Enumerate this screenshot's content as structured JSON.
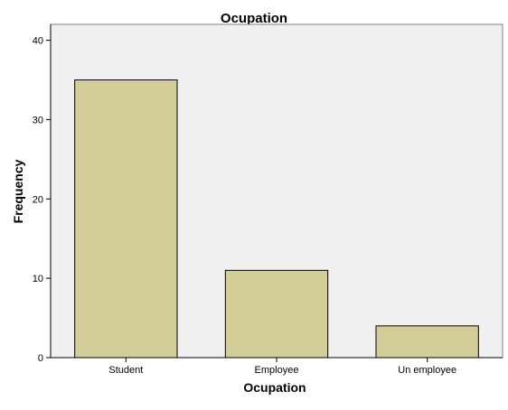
{
  "chart_data": {
    "type": "bar",
    "title": "Ocupation",
    "xlabel": "Ocupation",
    "ylabel": "Frequency",
    "categories": [
      "Student",
      "Employee",
      "Un employee"
    ],
    "values": [
      35,
      11,
      4
    ],
    "ylim": [
      0,
      42
    ],
    "yticks": [
      0,
      10,
      20,
      30,
      40
    ],
    "grid": false,
    "legend": "none",
    "colors": {
      "plot_background": "#f0f0f0",
      "bar_fill": "#d3ce97",
      "bar_stroke": "#000000",
      "frame": "#808080"
    }
  }
}
